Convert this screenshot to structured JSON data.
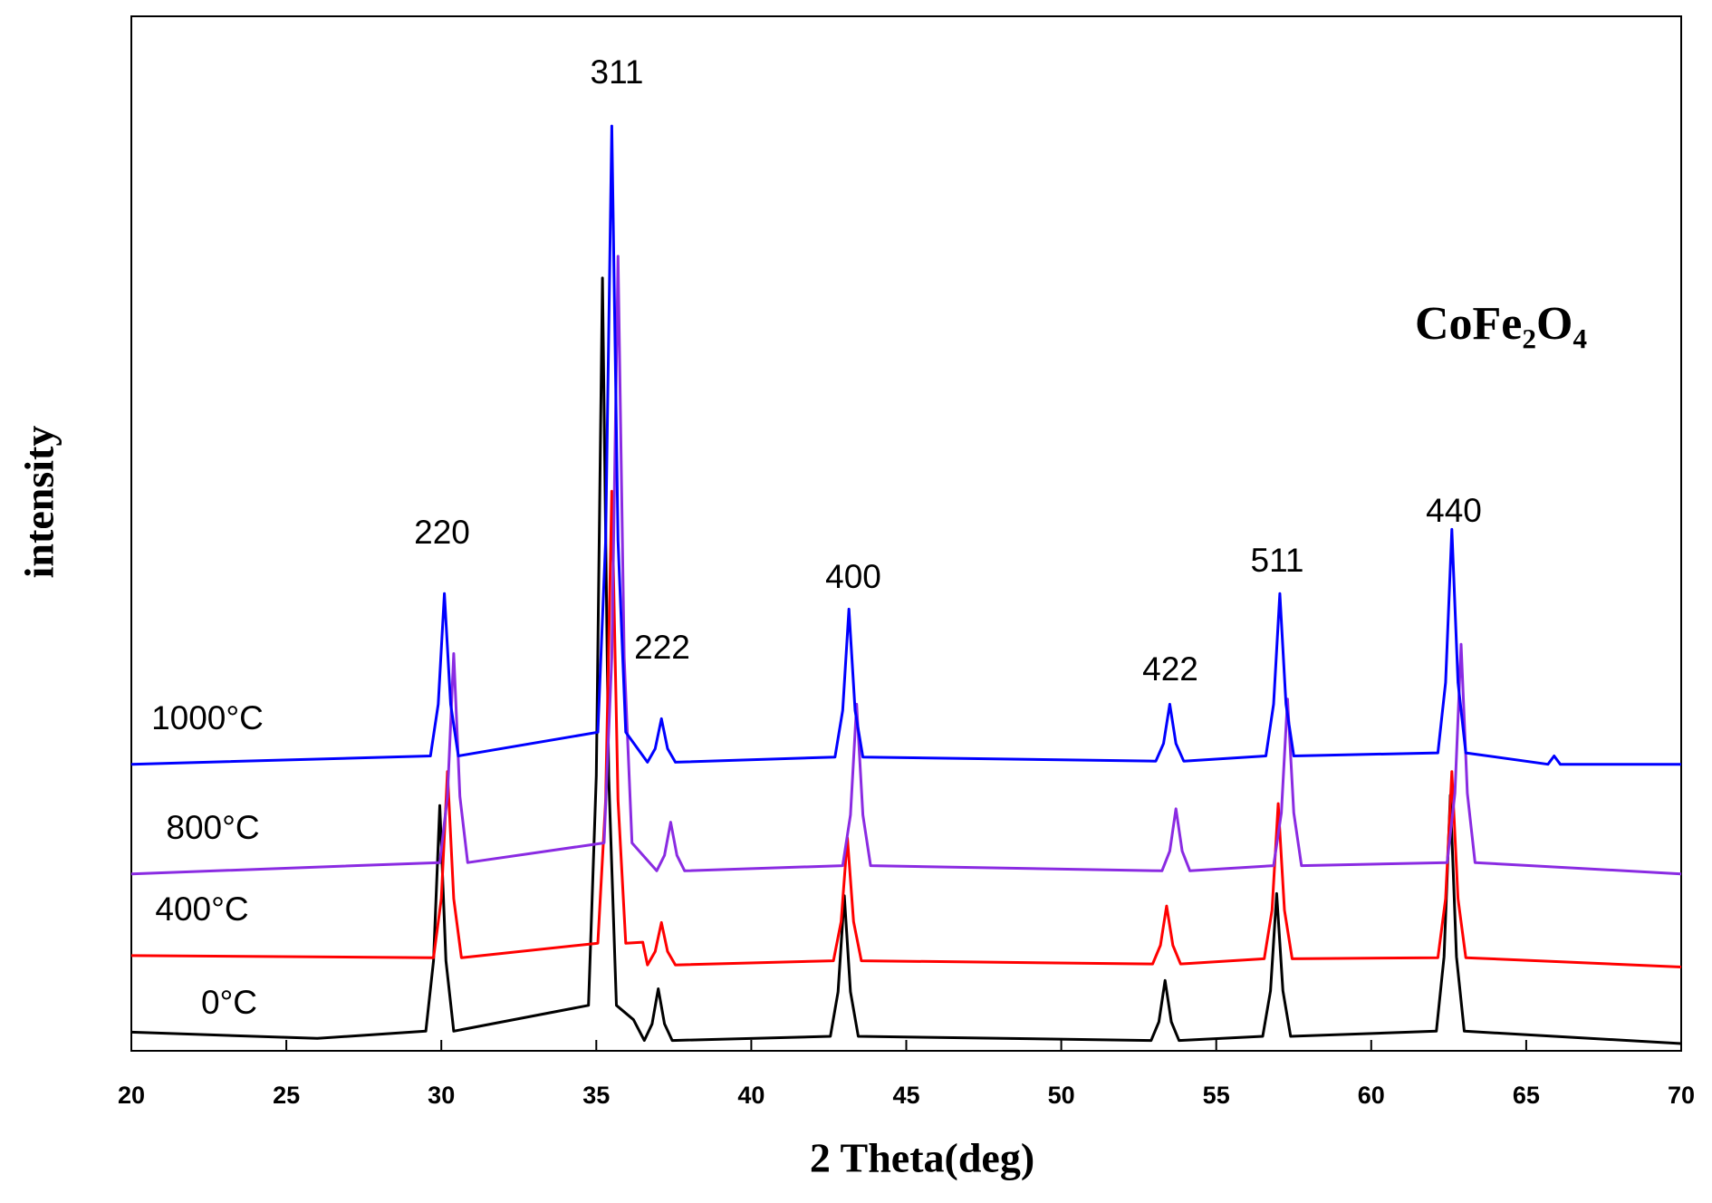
{
  "chart_data": {
    "type": "line",
    "x_label": "2 Theta(deg)",
    "y_label": "intensity",
    "compound": "CoFe₂O₄",
    "peak_labels": [
      "220",
      "311",
      "222",
      "400",
      "422",
      "511",
      "440"
    ],
    "xlim": [
      20,
      70
    ],
    "xticks": [
      20,
      25,
      30,
      35,
      40,
      45,
      50,
      55,
      60,
      65,
      70
    ],
    "ylim": [
      0,
      100
    ],
    "series": [
      {
        "name": "1000°C",
        "color": "#0000ff",
        "x": [
          20,
          29.65,
          29.9,
          30.1,
          30.3,
          30.55,
          35.05,
          35.3,
          35.5,
          35.7,
          35.95,
          36.65,
          36.9,
          37.1,
          37.3,
          37.55,
          42.7,
          42.95,
          43.15,
          43.35,
          43.6,
          53.05,
          53.3,
          53.5,
          53.7,
          53.95,
          56.6,
          56.85,
          57.05,
          57.25,
          57.5,
          62.15,
          62.4,
          62.6,
          62.8,
          63.05,
          65.7,
          65.9,
          66.1,
          70
        ],
        "values": [
          27.7,
          28.5,
          33.5,
          44.2,
          33.5,
          28.5,
          30.8,
          49.3,
          89.4,
          49.3,
          30.8,
          27.9,
          29.2,
          32.1,
          29.2,
          27.9,
          28.4,
          32.9,
          42.7,
          32.9,
          28.4,
          28.0,
          29.7,
          33.5,
          29.7,
          28.0,
          28.5,
          33.5,
          44.2,
          33.5,
          28.5,
          28.8,
          35.6,
          50.4,
          35.6,
          28.8,
          27.7,
          28.5,
          27.7,
          27.7
        ]
      },
      {
        "name": "800°C",
        "color": "#8a2be2",
        "x": [
          20,
          29.95,
          30.2,
          30.4,
          30.6,
          30.85,
          35.25,
          35.5,
          35.7,
          35.9,
          36.15,
          36.95,
          37.2,
          37.4,
          37.6,
          37.85,
          42.95,
          43.2,
          43.4,
          43.6,
          43.85,
          53.25,
          53.5,
          53.7,
          53.9,
          54.15,
          56.85,
          57.1,
          57.3,
          57.5,
          57.75,
          62.45,
          62.7,
          62.9,
          63.1,
          63.35,
          70
        ],
        "values": [
          17.1,
          18.2,
          24.6,
          38.4,
          24.6,
          18.2,
          20.1,
          38.0,
          76.8,
          38.0,
          20.1,
          17.4,
          18.9,
          22.1,
          18.9,
          17.4,
          17.9,
          22.8,
          33.5,
          22.8,
          17.9,
          17.4,
          19.3,
          23.4,
          19.3,
          17.4,
          17.9,
          23.0,
          34.0,
          23.0,
          17.9,
          18.2,
          24.9,
          39.3,
          24.9,
          18.2,
          17.1
        ]
      },
      {
        "name": "400°C",
        "color": "#ff0000",
        "x": [
          20,
          29.75,
          30.0,
          30.2,
          30.4,
          30.65,
          35.05,
          35.3,
          35.5,
          35.7,
          35.95,
          36.5,
          36.65,
          36.9,
          37.1,
          37.3,
          37.55,
          42.65,
          42.9,
          43.1,
          43.3,
          43.55,
          52.95,
          53.2,
          53.4,
          53.6,
          53.85,
          56.55,
          56.8,
          57.0,
          57.2,
          57.45,
          62.15,
          62.4,
          62.6,
          62.8,
          63.05,
          70
        ],
        "values": [
          9.2,
          9.0,
          14.7,
          27.0,
          14.7,
          9.0,
          10.4,
          24.2,
          54.1,
          24.2,
          10.4,
          10.5,
          8.3,
          9.6,
          12.4,
          9.6,
          8.3,
          8.7,
          12.5,
          20.6,
          12.5,
          8.7,
          8.4,
          10.2,
          14.0,
          10.2,
          8.4,
          8.9,
          13.6,
          23.9,
          13.6,
          8.9,
          9.0,
          14.7,
          27.0,
          14.7,
          9.0,
          8.1
        ]
      },
      {
        "name": "0°C",
        "color": "#000000",
        "x": [
          20,
          26,
          29.5,
          29.75,
          29.95,
          30.15,
          30.4,
          34.75,
          35.0,
          35.2,
          35.4,
          35.65,
          36.2,
          36.55,
          36.8,
          37.0,
          37.2,
          37.45,
          42.55,
          42.8,
          43.0,
          43.2,
          43.45,
          52.9,
          53.15,
          53.35,
          53.55,
          53.8,
          56.5,
          56.75,
          56.95,
          57.15,
          57.4,
          62.1,
          62.35,
          62.55,
          62.75,
          63.0,
          70
        ],
        "values": [
          1.8,
          1.2,
          1.9,
          8.7,
          23.7,
          8.7,
          1.9,
          4.4,
          26.6,
          74.7,
          26.6,
          4.4,
          3.0,
          1.0,
          2.6,
          6.0,
          2.6,
          1.0,
          1.4,
          5.7,
          15.0,
          5.7,
          1.4,
          1.0,
          2.8,
          6.8,
          2.8,
          1.0,
          1.4,
          5.8,
          15.2,
          5.8,
          1.4,
          1.9,
          9.1,
          24.7,
          9.1,
          1.9,
          0.7
        ]
      }
    ]
  }
}
